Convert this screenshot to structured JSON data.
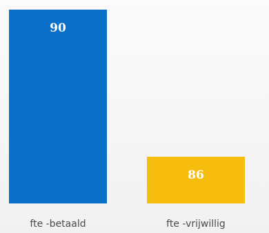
{
  "chart_data": {
    "type": "bar",
    "categories": [
      "fte -betaald",
      "fte -vrijwillig"
    ],
    "values": [
      90,
      86
    ],
    "colors": [
      "#0a6fc8",
      "#f6bd0f"
    ],
    "data_labels": [
      "90",
      "86"
    ],
    "title": "",
    "xlabel": "",
    "ylabel": "",
    "grid": false,
    "legend": "none"
  }
}
